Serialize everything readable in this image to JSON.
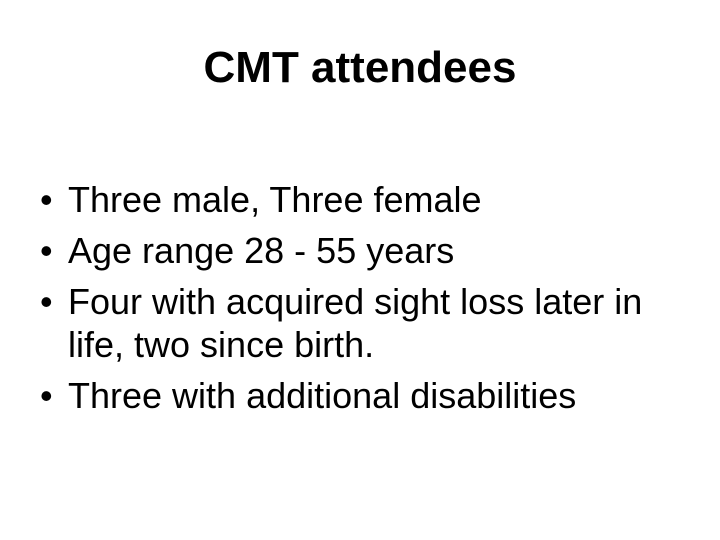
{
  "slide": {
    "title": "CMT attendees",
    "bullet_glyph": "•",
    "bullets": [
      {
        "text": "Three male, Three female"
      },
      {
        "text": "Age range 28 - 55 years"
      },
      {
        "text": "Four with acquired sight loss later in\nlife, two since birth."
      },
      {
        "text": "Three with additional disabilities"
      }
    ],
    "colors": {
      "background": "#ffffff",
      "text": "#000000"
    }
  }
}
